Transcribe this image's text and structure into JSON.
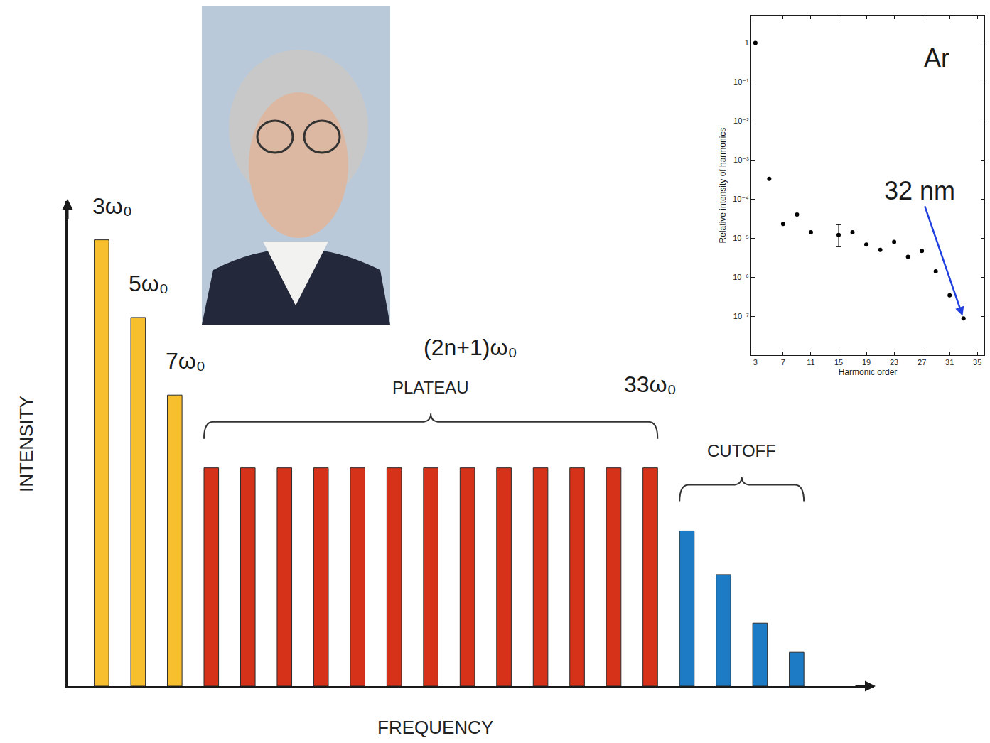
{
  "chart_data": [
    {
      "type": "bar",
      "categories": [
        "3ω₀",
        "5ω₀",
        "7ω₀",
        null,
        null,
        null,
        null,
        null,
        null,
        null,
        null,
        null,
        null,
        null,
        null,
        "33ω₀",
        null,
        null,
        null,
        null
      ],
      "values": [
        92,
        76,
        60,
        45,
        45,
        45,
        45,
        45,
        45,
        45,
        45,
        45,
        45,
        45,
        45,
        45,
        32,
        23,
        13,
        7
      ],
      "colors": [
        "#f7be2e",
        "#f7be2e",
        "#f7be2e",
        "#d6321a",
        "#d6321a",
        "#d6321a",
        "#d6321a",
        "#d6321a",
        "#d6321a",
        "#d6321a",
        "#d6321a",
        "#d6321a",
        "#d6321a",
        "#d6321a",
        "#d6321a",
        "#d6321a",
        "#1c7bc4",
        "#1c7bc4",
        "#1c7bc4",
        "#1c7bc4"
      ],
      "ylim": [
        0,
        100
      ],
      "tick_labels": false,
      "xlabel": "FREQUENCY",
      "ylabel": "INTENSITY",
      "groups": [
        {
          "label": "PLATEAU",
          "note": "(2n+1)ω₀",
          "color": "#d6321a"
        },
        {
          "label": "CUTOFF",
          "color": "#1c7bc4"
        }
      ]
    },
    {
      "type": "scatter",
      "x": [
        3,
        5,
        7,
        9,
        11,
        15,
        17,
        19,
        21,
        23,
        25,
        27,
        29,
        31,
        33
      ],
      "values": [
        1,
        0.00033,
        2.3e-05,
        4e-05,
        1.4e-05,
        1.2e-05,
        1.4e-05,
        6.8e-06,
        5e-06,
        8e-06,
        3.3e-06,
        4.7e-06,
        1.4e-06,
        3.4e-07,
        8.7e-08
      ],
      "error_plus": [
        null,
        null,
        null,
        null,
        null,
        1e-05,
        null,
        null,
        null,
        null,
        null,
        null,
        null,
        null,
        null
      ],
      "error_minus": [
        null,
        null,
        null,
        null,
        null,
        6e-06,
        null,
        null,
        null,
        null,
        null,
        null,
        null,
        null,
        null
      ],
      "color": "#000000",
      "marker": "circle",
      "log": "y",
      "xlim": [
        2.4,
        36
      ],
      "ylim": [
        1e-08,
        5
      ],
      "xticks": [
        3,
        7,
        11,
        15,
        19,
        23,
        27,
        31,
        35
      ],
      "yticks": [
        1,
        {
          "value": 0.1,
          "label": "10⁻¹"
        },
        {
          "value": 0.01,
          "label": "10⁻²"
        },
        {
          "value": 0.001,
          "label": "10⁻³"
        },
        {
          "value": 0.0001,
          "label": "10⁻⁴"
        },
        {
          "value": 1e-05,
          "label": "10⁻⁵"
        },
        {
          "value": 1e-06,
          "label": "10⁻⁶"
        },
        {
          "value": 1e-07,
          "label": "10⁻⁷"
        }
      ],
      "xlabel": "Harmonic order",
      "ylabel": "Relative intensity of harmonics",
      "annotations": [
        {
          "text": "Ar"
        },
        {
          "text": "32 nm",
          "x": 33,
          "y": 8.7e-08,
          "color": "#1f3fe0"
        }
      ]
    }
  ]
}
